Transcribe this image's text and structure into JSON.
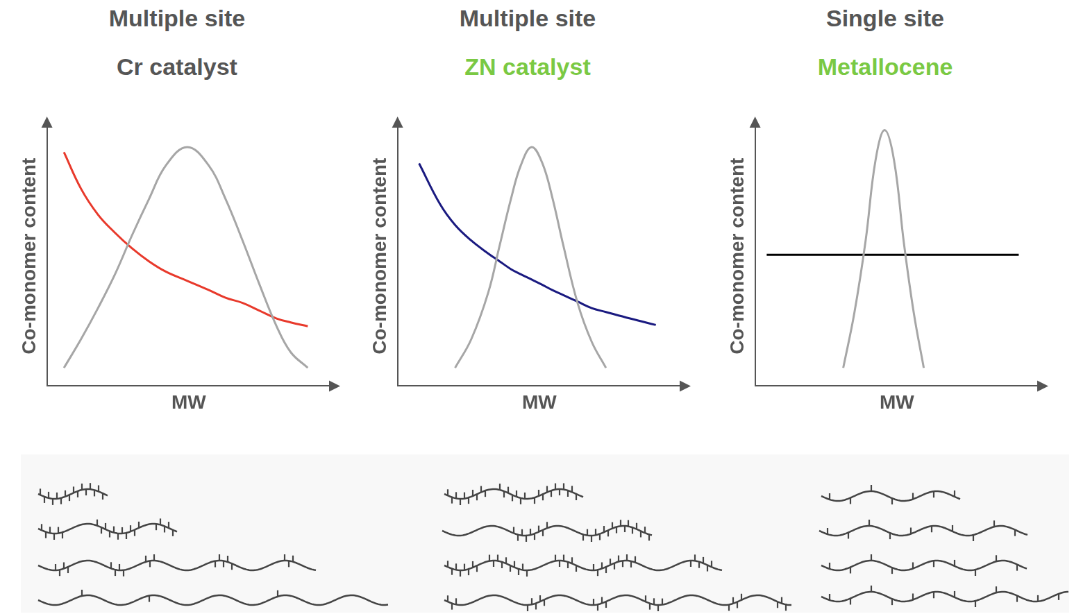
{
  "chart_data": [
    {
      "type": "line",
      "title": "Multiple site",
      "subtitle": "Cr catalyst",
      "x_label": "MW",
      "y_label": "Co-monomer content",
      "xlim": [
        0,
        10
      ],
      "ylim": [
        0,
        10
      ],
      "tick_labels": false,
      "grid": false,
      "x": [
        0.6,
        1.2,
        1.8,
        2.4,
        3.0,
        3.6,
        4.2,
        4.95,
        5.7,
        6.3,
        6.9,
        7.5,
        8.1,
        8.6,
        9.2
      ],
      "series": [
        {
          "color": "#a6a6a6",
          "values": [
            0.7,
            1.8,
            3.0,
            4.3,
            5.8,
            7.2,
            8.5,
            9.2,
            8.5,
            7.2,
            5.6,
            3.9,
            2.3,
            1.3,
            0.7
          ]
        },
        {
          "color": "#e8392b",
          "values": [
            9.0,
            7.6,
            6.6,
            5.9,
            5.3,
            4.8,
            4.4,
            4.05,
            3.7,
            3.4,
            3.2,
            2.9,
            2.6,
            2.45,
            2.3
          ]
        }
      ]
    },
    {
      "type": "line",
      "title": "Multiple site",
      "subtitle": "ZN catalyst",
      "x_label": "MW",
      "y_label": "Co-monomer content",
      "xlim": [
        0,
        10
      ],
      "ylim": [
        0,
        10
      ],
      "tick_labels": false,
      "grid": false,
      "x": [
        0.76,
        1.5,
        2.03,
        2.6,
        3.2,
        3.6,
        4.0,
        4.35,
        4.73,
        5.1,
        5.45,
        5.85,
        6.35,
        6.85,
        7.35,
        8.2,
        9.11
      ],
      "series": [
        {
          "color": "#a6a6a6",
          "values": [
            null,
            null,
            0.7,
            1.8,
            3.6,
            5.4,
            7.2,
            8.5,
            9.2,
            8.6,
            7.3,
            5.4,
            3.2,
            1.7,
            0.7,
            null,
            null
          ]
        },
        {
          "color": "#1a1a80",
          "values": [
            8.57,
            7.0,
            6.2,
            5.6,
            5.1,
            4.8,
            4.5,
            4.3,
            4.1,
            3.9,
            3.7,
            3.5,
            3.25,
            3.0,
            2.85,
            2.6,
            2.35
          ]
        }
      ]
    },
    {
      "type": "line",
      "title": "Single site",
      "subtitle": "Metallocene",
      "x_label": "MW",
      "y_label": "Co-monomer content",
      "xlim": [
        0,
        10
      ],
      "ylim": [
        0,
        10
      ],
      "tick_labels": false,
      "grid": false,
      "x": [
        0.41,
        3.11,
        3.5,
        3.9,
        4.25,
        4.57,
        4.9,
        5.25,
        5.6,
        5.95,
        9.3
      ],
      "series": [
        {
          "color": "#a6a6a6",
          "values": [
            null,
            0.7,
            2.8,
            5.6,
            8.7,
            9.85,
            8.7,
            5.5,
            2.8,
            0.7,
            null
          ]
        },
        {
          "color": "#000000",
          "values": [
            5.05,
            5.05,
            5.05,
            5.05,
            5.05,
            5.05,
            5.05,
            5.05,
            5.05,
            5.05,
            5.05
          ]
        }
      ]
    }
  ]
}
